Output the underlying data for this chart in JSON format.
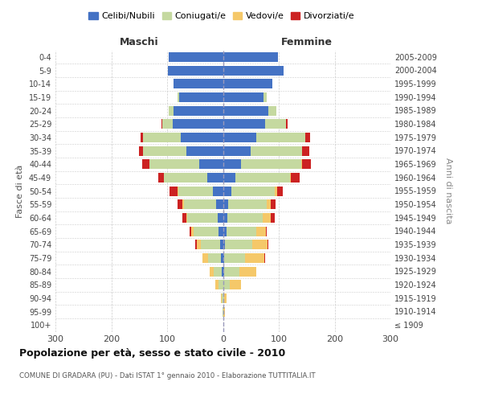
{
  "age_groups": [
    "100+",
    "95-99",
    "90-94",
    "85-89",
    "80-84",
    "75-79",
    "70-74",
    "65-69",
    "60-64",
    "55-59",
    "50-54",
    "45-49",
    "40-44",
    "35-39",
    "30-34",
    "25-29",
    "20-24",
    "15-19",
    "10-14",
    "5-9",
    "0-4"
  ],
  "birth_years": [
    "≤ 1909",
    "1910-1914",
    "1915-1919",
    "1920-1924",
    "1925-1929",
    "1930-1934",
    "1935-1939",
    "1940-1944",
    "1945-1949",
    "1950-1954",
    "1955-1959",
    "1960-1964",
    "1965-1969",
    "1970-1974",
    "1975-1979",
    "1980-1984",
    "1985-1989",
    "1990-1994",
    "1995-1999",
    "2000-2004",
    "2005-2009"
  ],
  "maschi_celibi": [
    0,
    0,
    0,
    0,
    2,
    3,
    5,
    8,
    10,
    12,
    18,
    28,
    42,
    65,
    75,
    90,
    88,
    78,
    88,
    98,
    97
  ],
  "maschi_coniugati": [
    0,
    1,
    2,
    8,
    14,
    24,
    34,
    44,
    54,
    58,
    62,
    78,
    90,
    78,
    68,
    18,
    9,
    4,
    1,
    1,
    0
  ],
  "maschi_vedovi": [
    0,
    0,
    2,
    5,
    8,
    10,
    8,
    5,
    2,
    2,
    1,
    0,
    0,
    0,
    0,
    0,
    0,
    0,
    0,
    0,
    0
  ],
  "maschi_divorziati": [
    0,
    0,
    0,
    0,
    0,
    0,
    2,
    2,
    6,
    10,
    14,
    10,
    12,
    8,
    5,
    2,
    0,
    0,
    0,
    0,
    0
  ],
  "femmine_nubili": [
    0,
    0,
    0,
    0,
    2,
    2,
    4,
    6,
    8,
    10,
    15,
    22,
    32,
    50,
    60,
    75,
    82,
    72,
    88,
    108,
    98
  ],
  "femmine_coniugate": [
    0,
    1,
    2,
    12,
    28,
    38,
    48,
    53,
    63,
    68,
    78,
    98,
    108,
    92,
    88,
    38,
    14,
    7,
    1,
    1,
    0
  ],
  "femmine_vedove": [
    0,
    2,
    5,
    20,
    30,
    34,
    28,
    18,
    14,
    8,
    4,
    2,
    2,
    0,
    0,
    0,
    0,
    0,
    0,
    0,
    0
  ],
  "femmine_divorziate": [
    0,
    0,
    0,
    0,
    0,
    2,
    2,
    2,
    8,
    8,
    10,
    15,
    15,
    12,
    8,
    3,
    0,
    0,
    0,
    0,
    0
  ],
  "colors_celibi": "#4472c4",
  "colors_coniugati": "#c5d9a0",
  "colors_vedovi": "#f5c869",
  "colors_divorziati": "#cc2222",
  "xlim": 300,
  "title": "Popolazione per età, sesso e stato civile - 2010",
  "subtitle": "COMUNE DI GRADARA (PU) - Dati ISTAT 1° gennaio 2010 - Elaborazione TUTTITALIA.IT",
  "legend_labels": [
    "Celibi/Nubili",
    "Coniugati/e",
    "Vedovi/e",
    "Divorziati/e"
  ],
  "ylabel_left": "Fasce di età",
  "ylabel_right": "Anni di nascita",
  "label_maschi": "Maschi",
  "label_femmine": "Femmine",
  "background_color": "#ffffff",
  "grid_color": "#cccccc"
}
